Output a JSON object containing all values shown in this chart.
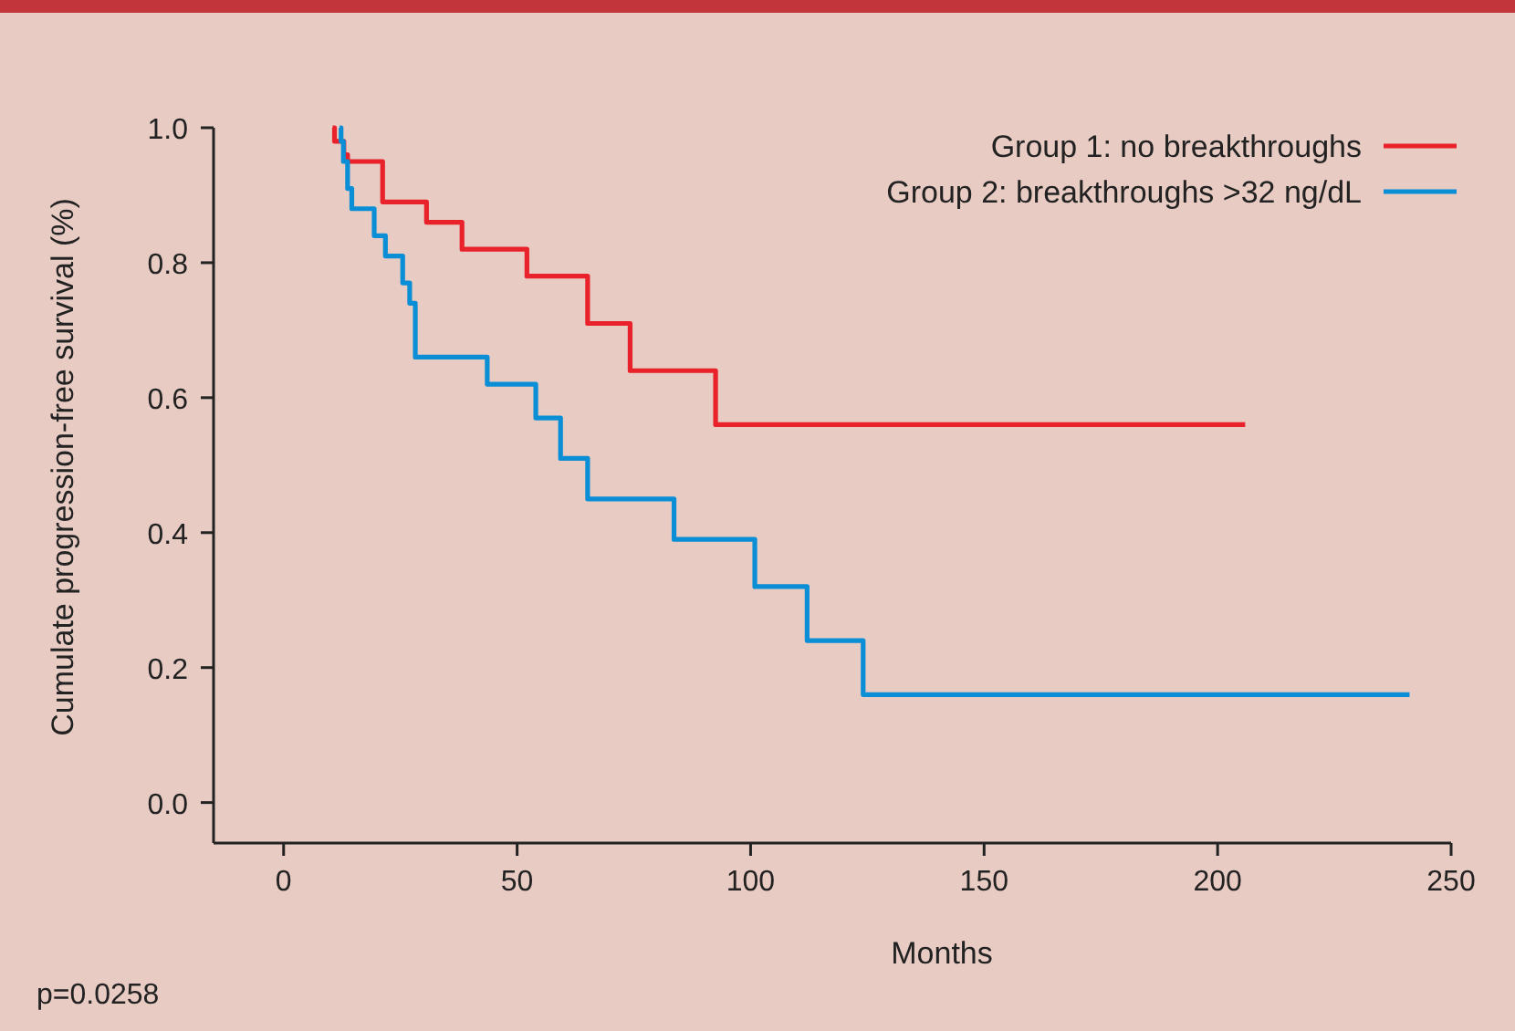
{
  "chart_data": {
    "type": "step",
    "xlabel": "Months",
    "ylabel": "Cumulate progression-free survival (%)",
    "xlim": [
      -15,
      250
    ],
    "ylim": [
      -0.06,
      1.0
    ],
    "xticks": [
      0,
      50,
      100,
      150,
      200,
      250
    ],
    "yticks": [
      {
        "value": 0,
        "label": "0.0"
      },
      0.2,
      0.4,
      0.6,
      0.8,
      {
        "value": 1,
        "label": "1.0"
      }
    ],
    "grid": false,
    "legend": "top right",
    "marker": "none",
    "line_style": "solid",
    "series": [
      {
        "name": "Group 1: no breakthroughs",
        "color": "#e8212a",
        "x": [
          10.5,
          10.9,
          12.9,
          13.7,
          21.2,
          30.6,
          38.2,
          52.1,
          65.1,
          74.2,
          92.5,
          205.9
        ],
        "values": [
          1.0,
          0.98,
          0.96,
          0.95,
          0.89,
          0.86,
          0.82,
          0.78,
          0.71,
          0.64,
          0.56,
          0.56
        ]
      },
      {
        "name": "Group 2: breakthroughs >32 ng/dL",
        "color": "#0a8fd6",
        "x": [
          12.0,
          12.3,
          12.8,
          13.7,
          14.6,
          19.4,
          21.8,
          25.5,
          27.0,
          28.2,
          43.6,
          54.0,
          59.3,
          65.1,
          83.6,
          100.9,
          112.1,
          124.1,
          241.1
        ],
        "values": [
          1.0,
          0.98,
          0.95,
          0.91,
          0.88,
          0.84,
          0.81,
          0.77,
          0.74,
          0.66,
          0.62,
          0.57,
          0.51,
          0.45,
          0.39,
          0.32,
          0.24,
          0.16,
          0.16
        ]
      }
    ],
    "annotations": [
      "p=0.0258"
    ]
  }
}
